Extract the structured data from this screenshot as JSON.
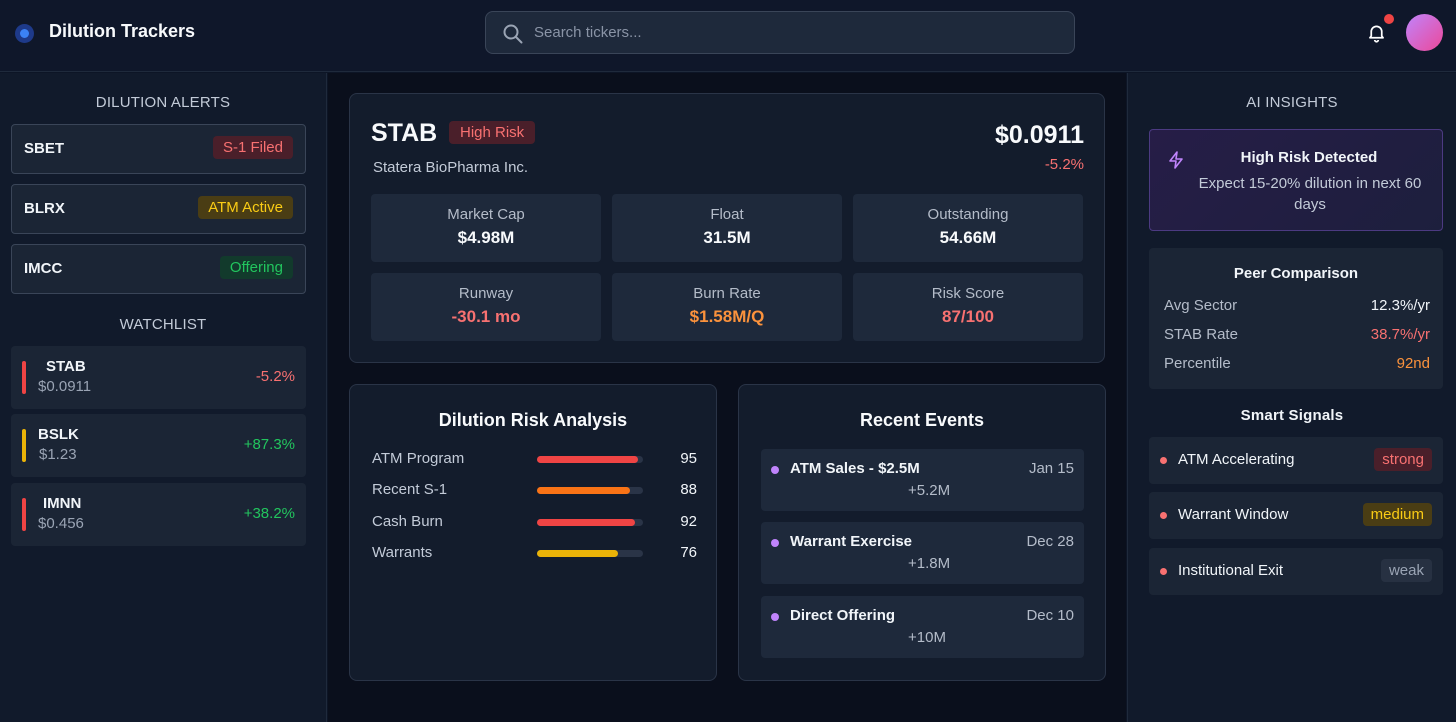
{
  "header": {
    "title": "Dilution Trackers",
    "search_placeholder": "Search tickers..."
  },
  "alerts": {
    "title": "DILUTION ALERTS",
    "items": [
      {
        "ticker": "SBET",
        "badge": "S-1 Filed"
      },
      {
        "ticker": "BLRX",
        "badge": "ATM Active"
      },
      {
        "ticker": "IMCC",
        "badge": "Offering"
      }
    ]
  },
  "watchlist": {
    "title": "WATCHLIST",
    "items": [
      {
        "ticker": "STAB",
        "price": "$0.0911",
        "change": "-5.2%"
      },
      {
        "ticker": "BSLK",
        "price": "$1.23",
        "change": "+87.3%"
      },
      {
        "ticker": "IMNN",
        "price": "$0.456",
        "change": "+38.2%"
      }
    ]
  },
  "stock": {
    "ticker": "STAB",
    "risk_badge": "High Risk",
    "company": "Statera BioPharma Inc.",
    "price": "$0.0911",
    "change": "-5.2%",
    "metrics": [
      {
        "label": "Market Cap",
        "value": "$4.98M"
      },
      {
        "label": "Float",
        "value": "31.5M"
      },
      {
        "label": "Outstanding",
        "value": "54.66M"
      },
      {
        "label": "Runway",
        "value": "-30.1 mo"
      },
      {
        "label": "Burn Rate",
        "value": "$1.58M/Q"
      },
      {
        "label": "Risk Score",
        "value": "87/100"
      }
    ]
  },
  "risk_analysis": {
    "title": "Dilution Risk Analysis",
    "items": [
      {
        "label": "ATM Program",
        "score": "95",
        "value": 95,
        "color": "#ef4444"
      },
      {
        "label": "Recent S-1",
        "score": "88",
        "value": 88,
        "color": "#f97316"
      },
      {
        "label": "Cash Burn",
        "score": "92",
        "value": 92,
        "color": "#ef4444"
      },
      {
        "label": "Warrants",
        "score": "76",
        "value": 76,
        "color": "#eab308"
      }
    ]
  },
  "events": {
    "title": "Recent Events",
    "items": [
      {
        "title": "ATM Sales - $2.5M",
        "amount": "+5.2M",
        "date": "Jan 15"
      },
      {
        "title": "Warrant Exercise",
        "amount": "+1.8M",
        "date": "Dec 28"
      },
      {
        "title": "Direct Offering",
        "amount": "+10M",
        "date": "Dec 10"
      }
    ]
  },
  "insights": {
    "title": "AI INSIGHTS",
    "alert_title": "High Risk Detected",
    "alert_text": "Expect 15-20% dilution in next 60 days"
  },
  "peer": {
    "title": "Peer Comparison",
    "rows": [
      {
        "label": "Avg Sector",
        "value": "12.3%/yr"
      },
      {
        "label": "STAB Rate",
        "value": "38.7%/yr"
      },
      {
        "label": "Percentile",
        "value": "92nd"
      }
    ]
  },
  "signals": {
    "title": "Smart Signals",
    "items": [
      {
        "label": "ATM Accelerating",
        "strength": "strong"
      },
      {
        "label": "Warrant Window",
        "strength": "medium"
      },
      {
        "label": "Institutional Exit",
        "strength": "weak"
      }
    ]
  },
  "colors": {
    "accent_red": "#f87171",
    "accent_green": "#22c55e",
    "accent_yellow": "#facc15",
    "accent_orange": "#fb923c",
    "accent_purple": "#c084fc"
  }
}
